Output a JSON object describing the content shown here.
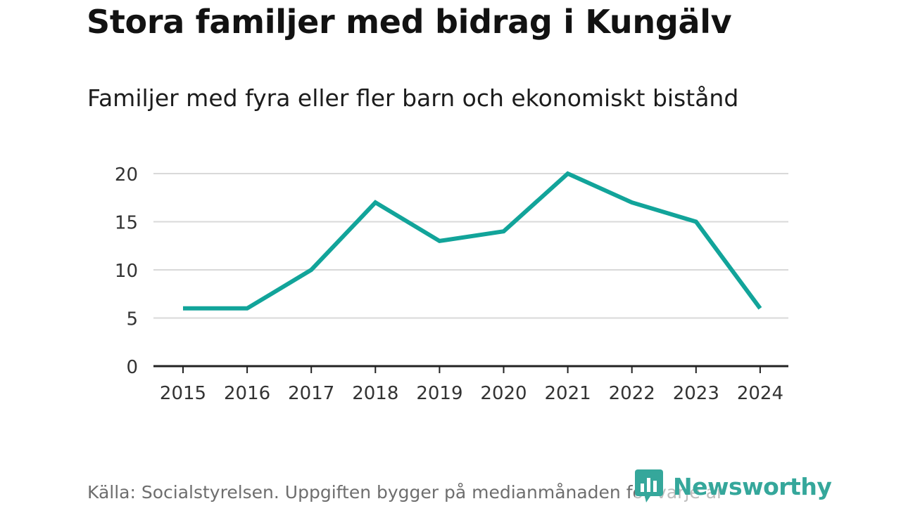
{
  "header": {
    "title": "Stora familjer med bidrag i Kungälv",
    "subtitle": "Familjer med fyra eller fler barn och ekonomiskt bistånd"
  },
  "footer": {
    "source": "Källa: Socialstyrelsen. Uppgiften bygger på medianmånaden för varje år",
    "brand": "Newsworthy"
  },
  "colors": {
    "line": "#12a49a",
    "grid": "#d9d9d9",
    "axis": "#222222",
    "brand": "#35a79b"
  },
  "chart_data": {
    "type": "line",
    "title": "Familjer med fyra eller fler barn och ekonomiskt bistånd",
    "xlabel": "",
    "ylabel": "",
    "categories": [
      "2015",
      "2016",
      "2017",
      "2018",
      "2019",
      "2020",
      "2021",
      "2022",
      "2023",
      "2024"
    ],
    "series": [
      {
        "name": "Familjer med fyra eller fler barn och ekonomiskt bistånd",
        "values": [
          6,
          6,
          10,
          17,
          13,
          14,
          20,
          17,
          15,
          6
        ]
      }
    ],
    "yticks": [
      "0",
      "5",
      "10",
      "15",
      "20"
    ],
    "ylim": [
      0,
      20
    ],
    "grid": true,
    "legend": "none"
  }
}
